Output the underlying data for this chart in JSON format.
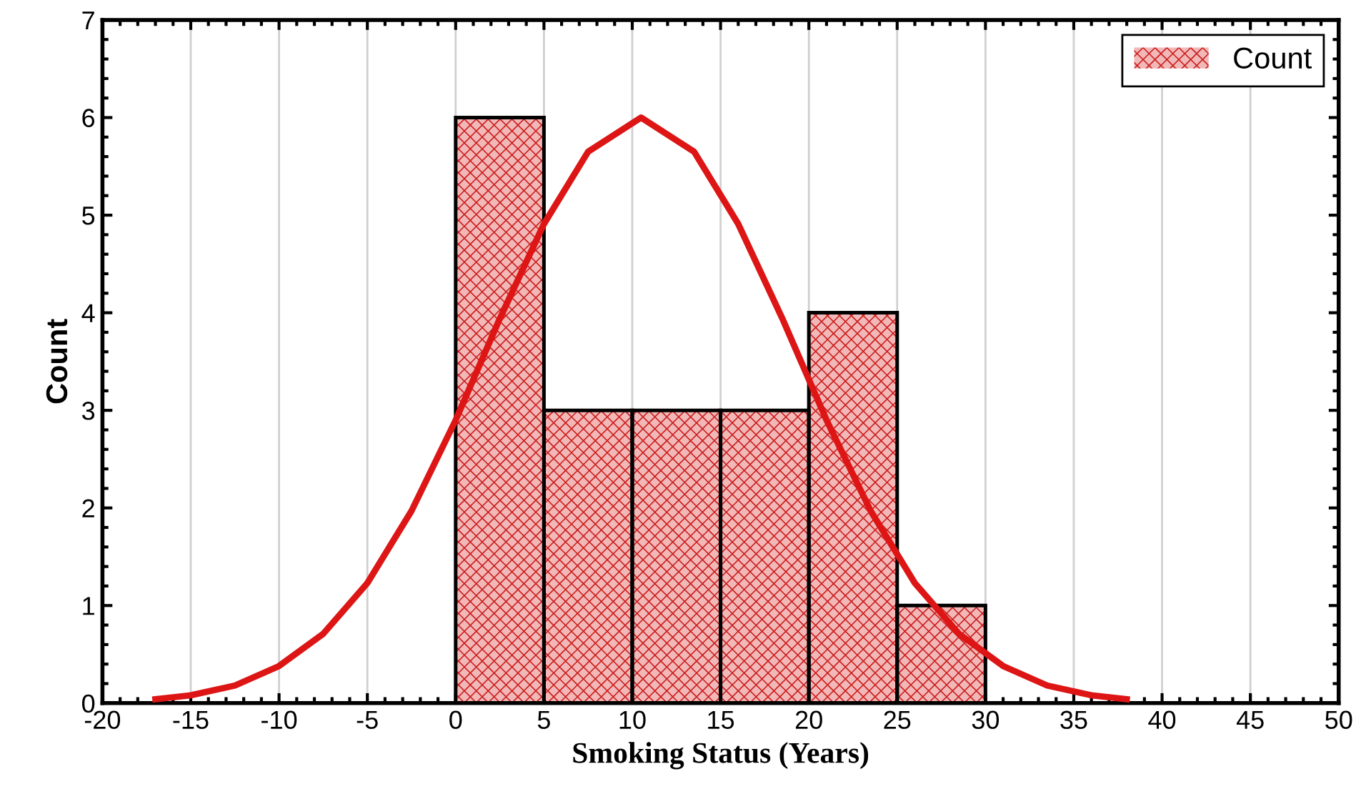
{
  "chart_data": {
    "type": "histogram",
    "xlabel": "Smoking Status (Years)",
    "ylabel": "Count",
    "bins": [
      0,
      5,
      10,
      15,
      20,
      25,
      30
    ],
    "series": [
      {
        "name": "Count",
        "color": "#f2b8b8",
        "values": [
          6,
          3,
          3,
          3,
          4,
          1
        ]
      },
      {
        "type": "line",
        "color": "#dd1515",
        "x": [
          -17,
          -15,
          -12.5,
          -10,
          -7.5,
          -5,
          -2.5,
          0,
          2.5,
          5,
          7.5,
          10.5,
          13.5,
          16,
          18.5,
          21,
          23.5,
          26,
          28.5,
          31,
          33.5,
          36,
          38
        ],
        "values": [
          0.04,
          0.08,
          0.18,
          0.38,
          0.71,
          1.23,
          1.97,
          2.9,
          3.94,
          4.91,
          5.65,
          6,
          5.65,
          4.91,
          3.94,
          2.9,
          1.97,
          1.23,
          0.71,
          0.38,
          0.18,
          0.08,
          0.04
        ]
      }
    ],
    "xlim": [
      -20,
      50
    ],
    "xticks": [
      -20,
      -15,
      -10,
      -5,
      0,
      5,
      10,
      15,
      20,
      25,
      30,
      35,
      40,
      45,
      50
    ],
    "ylim": [
      0,
      7
    ],
    "yticks": [
      0,
      1,
      2,
      3,
      4,
      5,
      6,
      7
    ],
    "grid": "x",
    "legend": "top right"
  }
}
